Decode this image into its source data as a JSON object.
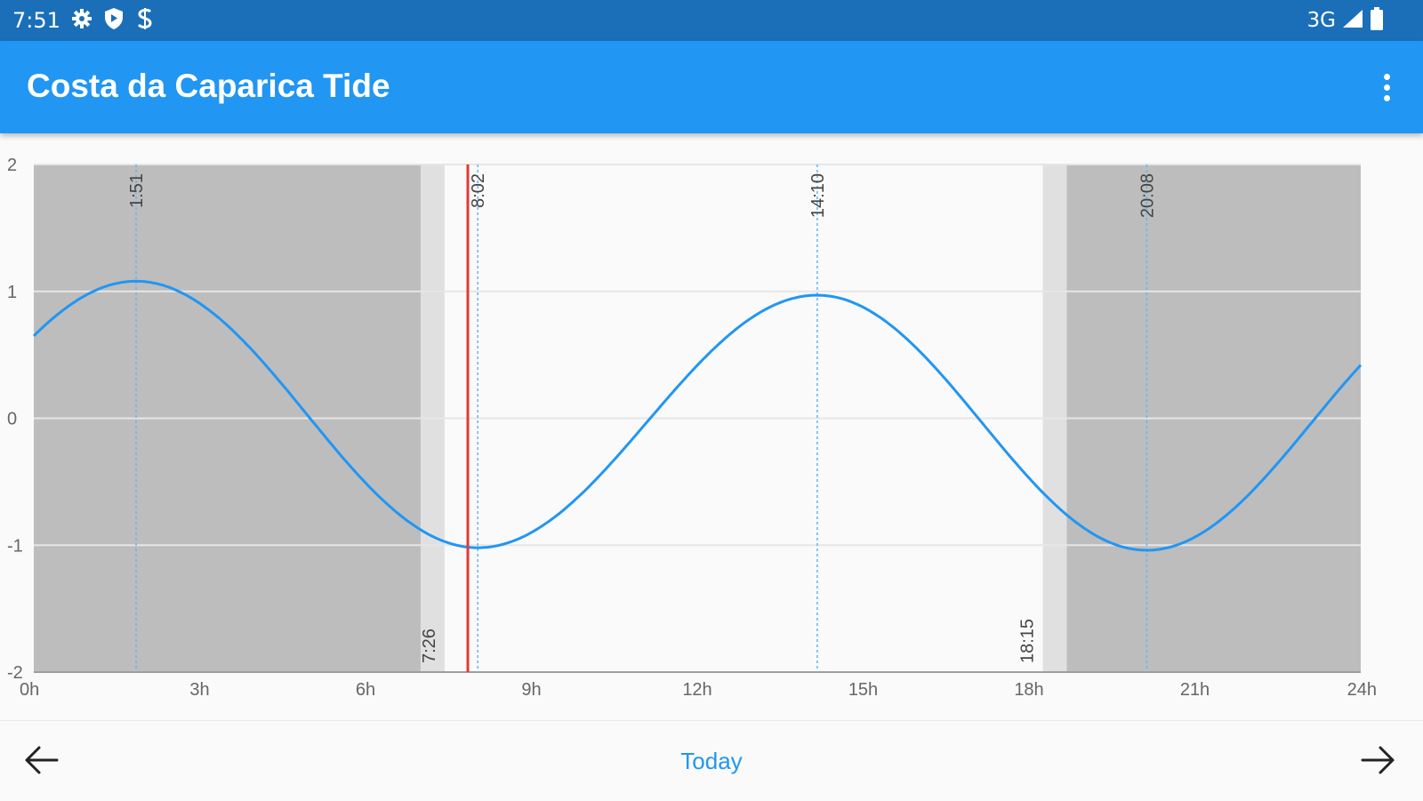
{
  "status_bar": {
    "time": "7:51",
    "network": "3G",
    "icons": [
      "gear-icon",
      "shield-icon",
      "sync-icon",
      "signal-icon",
      "battery-icon"
    ]
  },
  "app_bar": {
    "title": "Costa da Caparica Tide",
    "menu_icon": "more-vert-icon"
  },
  "chart_data": {
    "type": "line",
    "title": "",
    "xlabel": "",
    "ylabel": "",
    "x_ticks": [
      "0h",
      "3h",
      "6h",
      "9h",
      "12h",
      "15h",
      "18h",
      "21h",
      "24h"
    ],
    "y_ticks": [
      2,
      1,
      0,
      -1,
      -2
    ],
    "xlim": [
      0,
      24
    ],
    "ylim": [
      -2,
      2
    ],
    "grid": true,
    "series": [
      {
        "x": [
          0,
          1.85,
          8.03,
          14.17,
          20.13,
          24
        ],
        "y": [
          0.65,
          1.08,
          -1.02,
          0.97,
          -1.04,
          0.45
        ]
      }
    ],
    "tide_events": [
      {
        "time": "1:51",
        "hour": 1.85,
        "height": 1.08
      },
      {
        "time": "8:02",
        "hour": 8.03,
        "height": -1.02
      },
      {
        "time": "14:10",
        "hour": 14.17,
        "height": 0.97
      },
      {
        "time": "20:08",
        "hour": 20.13,
        "height": -1.04
      }
    ],
    "sunrise": {
      "time": "7:26",
      "hour": 7.43
    },
    "sunset": {
      "time": "18:15",
      "hour": 18.25
    },
    "twilight_minutes": 26,
    "current_time_hour": 7.85,
    "colors": {
      "curve": "#2196f3",
      "night": "#bdbdbd",
      "twilight": "#e0e0e0",
      "day": "#fafafa",
      "now_line": "#e53935"
    }
  },
  "bottom_bar": {
    "today_label": "Today",
    "prev_icon": "arrow-left-icon",
    "next_icon": "arrow-right-icon"
  }
}
